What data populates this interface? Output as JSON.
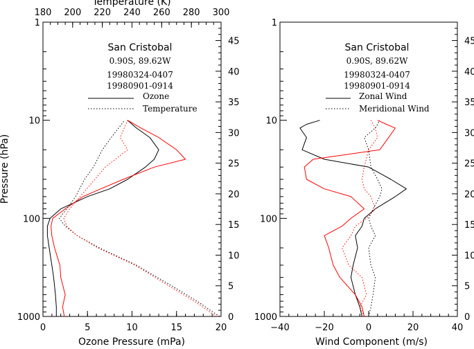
{
  "chart_data": [
    {
      "type": "line",
      "panel": "ozone",
      "station": "San Cristobal",
      "location": "0.90S, 89.62W",
      "dates": [
        "19980324-0407",
        "19980901-0914"
      ],
      "date_colors": [
        "#000000",
        "#ff0000"
      ],
      "legend": [
        {
          "label": "Ozone",
          "style": "solid"
        },
        {
          "label": "Temperature",
          "style": "dotted"
        }
      ],
      "xlabel": "Ozone Pressure (mPa)",
      "xlim": [
        0,
        20
      ],
      "xticks": [
        "0",
        "5",
        "10",
        "15",
        "20"
      ],
      "top_xlabel": "Temperature (K)",
      "top_xlim": [
        180,
        300
      ],
      "top_xticks": [
        "180",
        "200",
        "220",
        "240",
        "260",
        "280",
        "300"
      ],
      "ylabel": "Pressure (hPa)",
      "ylim": [
        1000,
        1
      ],
      "yscale": "log",
      "yticks": [
        "1",
        "10",
        "100",
        "1000"
      ],
      "right_ylim": [
        0,
        48
      ],
      "right_yticks": [
        "0",
        "5",
        "10",
        "15",
        "20",
        "25",
        "30",
        "35",
        "40",
        "45"
      ],
      "series": [
        {
          "date": "19980324-0407",
          "variable": "Ozone",
          "y": [
            1000,
            800,
            600,
            400,
            300,
            200,
            150,
            120,
            100,
            80,
            60,
            50,
            40,
            30,
            25,
            20,
            15,
            12,
            10
          ],
          "x": [
            1.5,
            1.5,
            1.4,
            1.2,
            1.0,
            0.7,
            0.5,
            0.5,
            0.8,
            2.0,
            5.0,
            7.5,
            9.5,
            11.5,
            12.5,
            13.0,
            12.0,
            10.5,
            9.5
          ]
        },
        {
          "date": "19980901-0914",
          "variable": "Ozone",
          "y": [
            1000,
            800,
            600,
            400,
            300,
            200,
            150,
            120,
            100,
            80,
            60,
            50,
            40,
            30,
            25,
            20,
            15,
            12,
            10
          ],
          "x": [
            2.4,
            2.2,
            2.5,
            2.0,
            1.9,
            1.3,
            1.0,
            0.9,
            1.1,
            2.5,
            4.5,
            6.5,
            9.0,
            12.5,
            16.0,
            15.0,
            13.0,
            11.0,
            9.5
          ]
        },
        {
          "date": "19980324-0407",
          "variable": "Temperature",
          "y": [
            1000,
            850,
            700,
            500,
            300,
            200,
            150,
            120,
            100,
            80,
            60,
            40,
            30,
            20,
            15,
            10
          ],
          "x": [
            299,
            292,
            284,
            268,
            243,
            218,
            203,
            195,
            191,
            196,
            202,
            208,
            214,
            220,
            226,
            235
          ]
        },
        {
          "date": "19980901-0914",
          "variable": "Temperature",
          "y": [
            1000,
            850,
            700,
            500,
            300,
            200,
            150,
            120,
            100,
            80,
            60,
            40,
            30,
            20,
            15,
            10
          ],
          "x": [
            297,
            290,
            282,
            266,
            242,
            217,
            203,
            196,
            194,
            198,
            205,
            215,
            222,
            237,
            232,
            237
          ]
        }
      ]
    },
    {
      "type": "line",
      "panel": "wind",
      "station": "San Cristobal",
      "location": "0.90S, 89.62W",
      "dates": [
        "19980324-0407",
        "19980901-0914"
      ],
      "date_colors": [
        "#000000",
        "#ff0000"
      ],
      "legend": [
        {
          "label": "Zonal Wind",
          "style": "solid"
        },
        {
          "label": "Meridional Wind",
          "style": "dotted"
        }
      ],
      "xlabel": "Wind Component (m/s)",
      "xlim": [
        -40,
        40
      ],
      "xticks": [
        "−40",
        "−20",
        "0",
        "20",
        "40"
      ],
      "ylim": [
        1000,
        1
      ],
      "yscale": "log",
      "yticks": [
        "1",
        "10",
        "100",
        "1000"
      ],
      "right_ylim": [
        0,
        48
      ],
      "right_yticks": [
        "0",
        "5",
        "10",
        "15",
        "20",
        "25",
        "30",
        "35",
        "40",
        "45"
      ],
      "series": [
        {
          "date": "19980324-0407",
          "variable": "Zonal Wind",
          "y": [
            1000,
            800,
            600,
            400,
            300,
            200,
            150,
            120,
            100,
            80,
            60,
            50,
            40,
            30,
            25,
            20,
            15,
            12,
            11,
            10
          ],
          "x": [
            -3,
            -4,
            -6,
            -8,
            -7,
            -5,
            -6,
            -3,
            -2,
            3,
            12,
            17,
            10,
            0,
            -20,
            -30,
            -28,
            -31,
            -28,
            -22
          ]
        },
        {
          "date": "19980901-0914",
          "variable": "Zonal Wind",
          "y": [
            1000,
            800,
            600,
            400,
            300,
            200,
            150,
            120,
            100,
            80,
            60,
            50,
            40,
            30,
            25,
            20,
            15,
            12,
            11,
            10
          ],
          "x": [
            -2,
            -3,
            -6,
            -13,
            -16,
            -18,
            -20,
            -12,
            -8,
            -2,
            -8,
            -20,
            -28,
            -29,
            -25,
            5,
            9,
            12,
            8,
            4
          ]
        },
        {
          "date": "19980324-0407",
          "variable": "Meridional Wind",
          "y": [
            1000,
            800,
            600,
            400,
            300,
            200,
            150,
            120,
            100,
            80,
            60,
            50,
            40,
            30,
            20,
            15,
            12,
            10
          ],
          "x": [
            0,
            1,
            2,
            3,
            1,
            0,
            3,
            1,
            0,
            2,
            5,
            6,
            4,
            1,
            0,
            -2,
            3,
            5
          ]
        },
        {
          "date": "19980901-0914",
          "variable": "Meridional Wind",
          "y": [
            1000,
            800,
            600,
            400,
            300,
            200,
            150,
            120,
            100,
            80,
            60,
            50,
            40,
            30,
            20,
            15,
            12,
            10
          ],
          "x": [
            -2,
            -4,
            -1,
            -3,
            -9,
            -12,
            -8,
            -6,
            -1,
            3,
            1,
            -2,
            -3,
            -2,
            0,
            4,
            3,
            1
          ]
        }
      ]
    }
  ]
}
